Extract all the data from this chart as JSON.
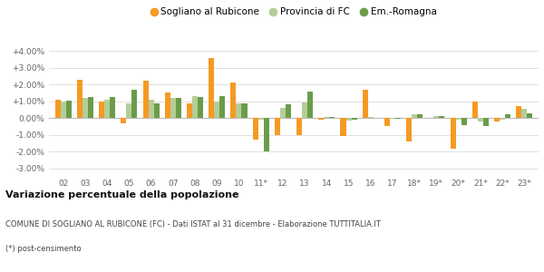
{
  "categories": [
    "02",
    "03",
    "04",
    "05",
    "06",
    "07",
    "08",
    "09",
    "10",
    "11*",
    "12",
    "13",
    "14",
    "15",
    "16",
    "17",
    "18*",
    "19*",
    "20*",
    "21*",
    "22*",
    "23*"
  ],
  "sogliano": [
    1.1,
    2.3,
    1.0,
    -0.3,
    2.2,
    1.5,
    0.85,
    3.55,
    2.1,
    -1.3,
    -1.0,
    -1.0,
    -0.1,
    -1.05,
    1.7,
    -0.5,
    -1.4,
    0.0,
    -1.8,
    1.0,
    -0.2,
    0.7
  ],
  "provincia": [
    1.0,
    1.2,
    1.1,
    0.9,
    1.1,
    1.2,
    1.3,
    1.0,
    0.85,
    -0.1,
    0.6,
    0.95,
    0.05,
    -0.15,
    0.05,
    -0.05,
    0.2,
    0.1,
    -0.1,
    -0.2,
    -0.1,
    0.55
  ],
  "emilia": [
    1.05,
    1.25,
    1.25,
    1.7,
    0.9,
    1.2,
    1.25,
    1.3,
    0.85,
    -2.0,
    0.8,
    1.55,
    0.05,
    -0.1,
    0.0,
    -0.05,
    0.2,
    0.1,
    -0.4,
    -0.5,
    0.2,
    0.3
  ],
  "sogliano_color": "#f59a23",
  "provincia_color": "#b5cd96",
  "emilia_color": "#6b9c4a",
  "background_color": "#ffffff",
  "grid_color": "#e0e0e0",
  "title": "Variazione percentuale della popolazione",
  "subtitle": "COMUNE DI SOGLIANO AL RUBICONE (FC) - Dati ISTAT al 31 dicembre - Elaborazione TUTTITALIA.IT",
  "footnote": "(*) post-censimento",
  "ylim": [
    -3.5,
    4.6
  ],
  "yticks": [
    -3.0,
    -2.0,
    -1.0,
    0.0,
    1.0,
    2.0,
    3.0,
    4.0
  ],
  "legend_labels": [
    "Sogliano al Rubicone",
    "Provincia di FC",
    "Em.-Romagna"
  ],
  "bar_width": 0.25
}
